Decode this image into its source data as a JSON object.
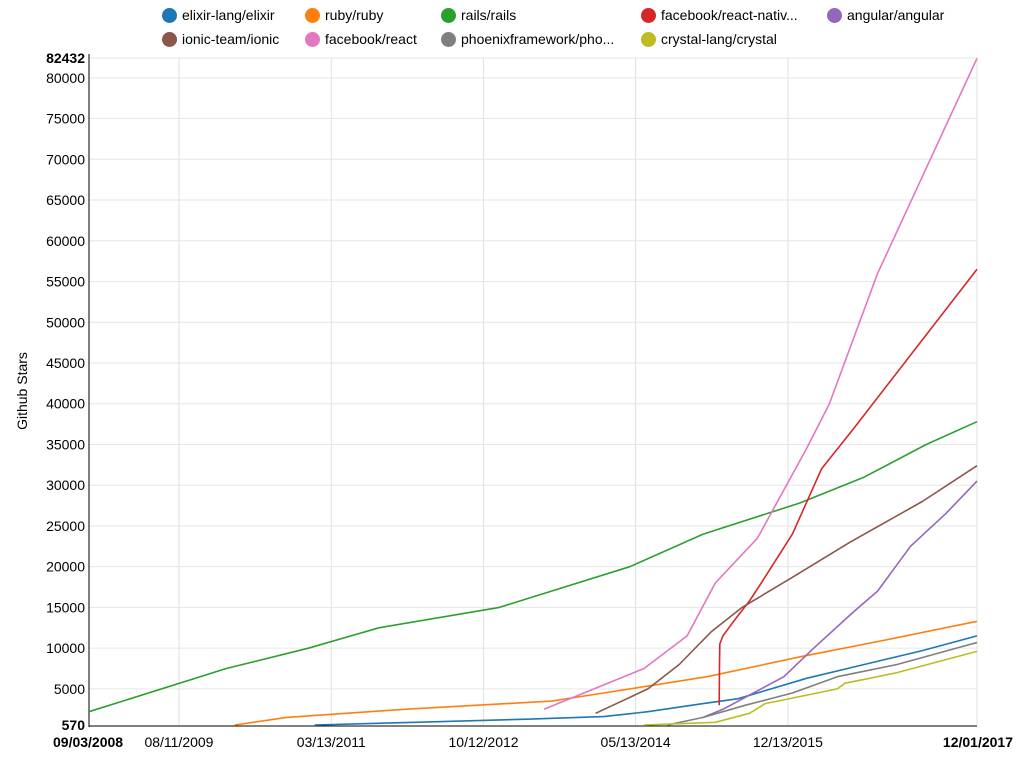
{
  "chart_data": {
    "type": "line",
    "ylabel": "Github Stars",
    "xlabel": "",
    "title": "",
    "ylim": [
      570,
      82432
    ],
    "xlim": [
      "2008-09-03",
      "2017-12-01"
    ],
    "y_ticks": [
      570,
      5000,
      10000,
      15000,
      20000,
      25000,
      30000,
      35000,
      40000,
      45000,
      50000,
      55000,
      60000,
      65000,
      70000,
      75000,
      80000,
      82432
    ],
    "y_tick_labels": [
      "570",
      "5000",
      "10000",
      "15000",
      "20000",
      "25000",
      "30000",
      "35000",
      "40000",
      "45000",
      "50000",
      "55000",
      "60000",
      "65000",
      "70000",
      "75000",
      "80000",
      "82432"
    ],
    "y_tick_bold": [
      "570",
      "82432"
    ],
    "x_ticks": [
      "2008-09-03",
      "2009-08-11",
      "2011-03-13",
      "2012-10-12",
      "2014-05-13",
      "2015-12-13",
      "2017-12-01"
    ],
    "x_tick_labels": [
      "09/03/2008",
      "08/11/2009",
      "03/13/2011",
      "10/12/2012",
      "05/13/2014",
      "12/13/2015",
      "12/01/2017"
    ],
    "x_tick_bold": [
      "09/03/2008",
      "12/01/2017"
    ],
    "grid": true,
    "legend_position": "top",
    "series": [
      {
        "name": "elixir-lang/elixir",
        "color": "#1f77b4",
        "x": [
          "2011-01-09",
          "2012-01-26",
          "2013-04-08",
          "2014-01-11",
          "2014-06-29",
          "2015-01-25",
          "2015-06-07",
          "2016-02-22",
          "2016-09-28",
          "2017-05-07",
          "2017-12-01"
        ],
        "y": [
          570,
          900,
          1300,
          1600,
          2200,
          3200,
          3800,
          6300,
          8000,
          9700,
          11500
        ]
      },
      {
        "name": "ruby/ruby",
        "color": "#ff7f0e",
        "x": [
          "2010-03-11",
          "2010-09-24",
          "2011-12-16",
          "2013-06-28",
          "2014-01-11",
          "2015-02-09",
          "2016-02-07",
          "2016-12-18",
          "2017-12-01"
        ],
        "y": [
          570,
          1500,
          2500,
          3500,
          4500,
          6500,
          9000,
          11000,
          13300
        ]
      },
      {
        "name": "rails/rails",
        "color": "#2ca02c",
        "x": [
          "2008-09-03",
          "2010-02-07",
          "2010-12-16",
          "2011-09-10",
          "2012-12-11",
          "2014-04-21",
          "2015-01-25",
          "2016-01-26",
          "2016-09-28",
          "2017-05-22",
          "2017-12-01"
        ],
        "y": [
          2200,
          7500,
          10000,
          12500,
          15000,
          20000,
          24000,
          27800,
          31000,
          35000,
          37800
        ]
      },
      {
        "name": "facebook/react-nativ...",
        "color": "#d62728",
        "x": [
          "2015-03-27",
          "2015-03-28",
          "2015-03-29",
          "2015-04-10",
          "2015-05-21",
          "2015-07-20",
          "2015-09-03",
          "2015-12-30",
          "2016-04-19",
          "2016-08-20",
          "2017-12-01"
        ],
        "y": [
          3000,
          8000,
          10500,
          11500,
          13300,
          15800,
          18000,
          24000,
          32000,
          37000,
          56500
        ]
      },
      {
        "name": "angular/angular",
        "color": "#9467bd",
        "x": [
          "2015-01-25",
          "2015-04-10",
          "2015-08-04",
          "2015-11-28",
          "2016-03-20",
          "2016-08-20",
          "2016-11-18",
          "2017-03-23",
          "2017-08-04",
          "2017-12-01"
        ],
        "y": [
          1500,
          2500,
          4500,
          6500,
          10000,
          14500,
          17000,
          22500,
          26500,
          30500
        ]
      },
      {
        "name": "ionic-team/ionic",
        "color": "#8c564b",
        "x": [
          "2013-12-12",
          "2014-06-29",
          "2014-10-26",
          "2015-02-24",
          "2015-06-22",
          "2015-12-30",
          "2016-08-05",
          "2017-05-07",
          "2017-12-01"
        ],
        "y": [
          2000,
          5000,
          8000,
          12000,
          15000,
          18700,
          23000,
          28000,
          32400
        ]
      },
      {
        "name": "facebook/react",
        "color": "#e377c2",
        "x": [
          "2013-05-30",
          "2014-06-14",
          "2014-11-25",
          "2015-03-12",
          "2015-08-19",
          "2016-02-22",
          "2016-05-19",
          "2016-11-18",
          "2017-12-01"
        ],
        "y": [
          2500,
          7500,
          11500,
          18000,
          23500,
          34500,
          40000,
          56000,
          82400
        ]
      },
      {
        "name": "phoenixframework/pho...",
        "color": "#7f7f7f",
        "x": [
          "2014-09-11",
          "2015-01-25",
          "2015-07-05",
          "2015-12-30",
          "2016-06-18",
          "2017-01-31",
          "2017-12-01"
        ],
        "y": [
          570,
          1500,
          3000,
          4500,
          6500,
          8000,
          10700
        ]
      },
      {
        "name": "crystal-lang/crystal",
        "color": "#bcbd22",
        "x": [
          "2014-06-14",
          "2015-03-12",
          "2015-07-20",
          "2015-09-18",
          "2016-06-18",
          "2016-07-17",
          "2016-10-19",
          "2017-01-31",
          "2017-12-01"
        ],
        "y": [
          570,
          900,
          2000,
          3200,
          5000,
          5700,
          6300,
          7000,
          9600
        ]
      }
    ]
  }
}
